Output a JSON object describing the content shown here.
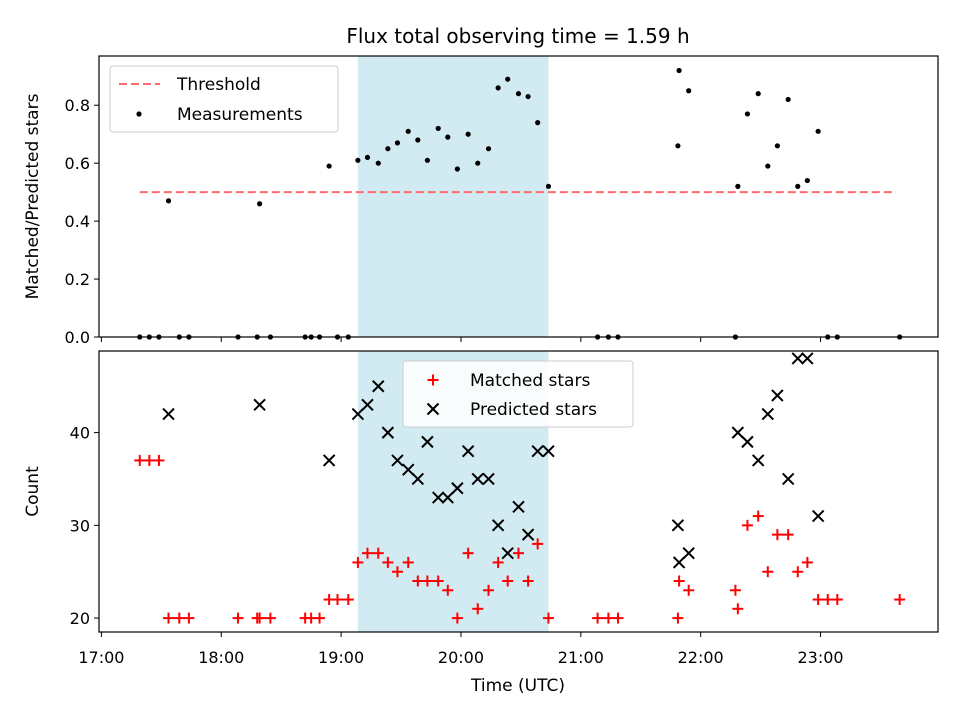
{
  "chart_data": {
    "type": "scatter",
    "title": "Flux total observing time = 1.59 h",
    "xlabel": "Time (UTC)",
    "xticks": [
      "17:00",
      "18:00",
      "19:00",
      "20:00",
      "21:00",
      "22:00",
      "23:00"
    ],
    "xtick_values": [
      17,
      18,
      19,
      20,
      21,
      22,
      23
    ],
    "xlim": [
      16.98,
      23.98
    ],
    "shaded_span": {
      "x": [
        19.14,
        20.73
      ],
      "color": "#add8e6"
    },
    "panels": [
      {
        "ylabel": "Matched/Predicted stars",
        "ylim": [
          0,
          0.97
        ],
        "yticks": [
          "0.0",
          "0.2",
          "0.4",
          "0.6",
          "0.8"
        ],
        "ytick_values": [
          0,
          0.2,
          0.4,
          0.6,
          0.8
        ],
        "legend": {
          "position": "upper-left",
          "entries": [
            "Threshold",
            "Measurements"
          ]
        },
        "threshold": {
          "name": "Threshold",
          "y": 0.5,
          "x": [
            17.32,
            23.63
          ],
          "color": "#ff6b6b"
        },
        "series": [
          {
            "name": "Measurements",
            "marker": "dot",
            "color": "#000000",
            "x": [
              17.32,
              17.4,
              17.48,
              17.56,
              17.65,
              17.73,
              18.14,
              18.3,
              18.32,
              18.41,
              18.7,
              18.75,
              18.82,
              18.9,
              18.97,
              19.06,
              19.14,
              19.22,
              19.31,
              19.39,
              19.47,
              19.56,
              19.64,
              19.72,
              19.81,
              19.89,
              19.97,
              20.06,
              20.14,
              20.23,
              20.31,
              20.39,
              20.48,
              20.56,
              20.64,
              20.73,
              21.14,
              21.23,
              21.31,
              21.81,
              21.82,
              21.9,
              22.29,
              22.31,
              22.39,
              22.48,
              22.56,
              22.64,
              22.73,
              22.81,
              22.89,
              22.98,
              23.06,
              23.14,
              23.66
            ],
            "y": [
              0.0,
              0.0,
              0.0,
              0.47,
              0.0,
              0.0,
              0.0,
              0.0,
              0.46,
              0.0,
              0.0,
              0.0,
              0.0,
              0.59,
              0.0,
              0.0,
              0.61,
              0.62,
              0.6,
              0.65,
              0.67,
              0.71,
              0.68,
              0.61,
              0.72,
              0.69,
              0.58,
              0.7,
              0.6,
              0.65,
              0.86,
              0.89,
              0.84,
              0.83,
              0.74,
              0.52,
              0.0,
              0.0,
              0.0,
              0.66,
              0.92,
              0.85,
              0.0,
              0.52,
              0.77,
              0.84,
              0.59,
              0.66,
              0.82,
              0.52,
              0.54,
              0.71,
              0.0,
              0.0,
              0.0
            ]
          }
        ]
      },
      {
        "ylabel": "Count",
        "ylim": [
          18.5,
          48.8
        ],
        "yticks": [
          "20",
          "30",
          "40"
        ],
        "ytick_values": [
          20,
          30,
          40
        ],
        "legend": {
          "position": "upper-center",
          "entries": [
            "Matched stars",
            "Predicted stars"
          ]
        },
        "series": [
          {
            "name": "Matched stars",
            "marker": "plus",
            "color": "#ff0000",
            "x": [
              17.32,
              17.4,
              17.48,
              17.56,
              17.65,
              17.73,
              18.14,
              18.3,
              18.32,
              18.41,
              18.7,
              18.75,
              18.82,
              18.9,
              18.97,
              19.06,
              19.14,
              19.22,
              19.31,
              19.39,
              19.47,
              19.56,
              19.64,
              19.72,
              19.81,
              19.89,
              19.97,
              20.06,
              20.14,
              20.23,
              20.31,
              20.39,
              20.48,
              20.56,
              20.64,
              20.73,
              21.14,
              21.23,
              21.31,
              21.81,
              21.82,
              21.9,
              22.29,
              22.31,
              22.39,
              22.48,
              22.56,
              22.64,
              22.73,
              22.81,
              22.89,
              22.98,
              23.06,
              23.14,
              23.66
            ],
            "y": [
              37,
              37,
              37,
              20,
              20,
              20,
              20,
              20,
              20,
              20,
              20,
              20,
              20,
              22,
              22,
              22,
              26,
              27,
              27,
              26,
              25,
              26,
              24,
              24,
              24,
              23,
              20,
              27,
              21,
              23,
              26,
              24,
              27,
              24,
              28,
              20,
              20,
              20,
              20,
              20,
              24,
              23,
              23,
              21,
              30,
              31,
              25,
              29,
              29,
              25,
              26,
              22,
              22,
              22,
              22
            ]
          },
          {
            "name": "Predicted stars",
            "marker": "x",
            "color": "#000000",
            "x": [
              17.56,
              18.32,
              18.9,
              19.14,
              19.22,
              19.31,
              19.39,
              19.47,
              19.56,
              19.64,
              19.72,
              19.81,
              19.89,
              19.97,
              20.06,
              20.14,
              20.23,
              20.31,
              20.39,
              20.48,
              20.56,
              20.64,
              20.73,
              21.81,
              21.82,
              21.9,
              22.31,
              22.39,
              22.48,
              22.56,
              22.64,
              22.73,
              22.81,
              22.89,
              22.98
            ],
            "y": [
              42,
              43,
              37,
              42,
              43,
              45,
              40,
              37,
              36,
              35,
              39,
              33,
              33,
              34,
              38,
              35,
              35,
              30,
              27,
              32,
              29,
              38,
              38,
              30,
              26,
              27,
              40,
              39,
              37,
              42,
              44,
              35,
              48,
              48,
              31
            ]
          }
        ]
      }
    ]
  }
}
